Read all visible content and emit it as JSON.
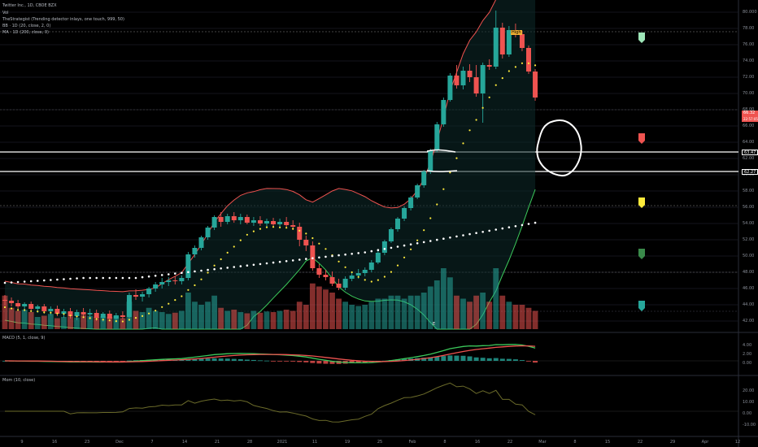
{
  "header": {
    "symbol_line": "Twitter Inc., 1D, CBOE BZX",
    "indicators": [
      "Vol",
      "TheStrategist (Trending detector inlays, one touch, 999, 50)",
      "BB · 1D (20, close, 2, 0)",
      "MA · 1D (200, close, 0)"
    ]
  },
  "colors": {
    "up": "#26a69a",
    "down": "#ef5350",
    "bb_upper": "#ef5350",
    "bb_lower": "#3cc95b",
    "sma_dots": "#ffeb3b",
    "ma_dots": "#ffffff",
    "macd_line": "#3cc95b",
    "signal_line": "#ef5350",
    "mom_line": "#6b6b2a"
  },
  "price_axis": {
    "ticks": [
      "80.000",
      "78.00",
      "76.00",
      "74.00",
      "72.00",
      "70.00",
      "68.00",
      "66.00",
      "64.00",
      "62.00",
      "60.00",
      "58.00",
      "56.00",
      "54.00",
      "52.00",
      "50.00",
      "48.00",
      "46.00",
      "44.00",
      "42.00"
    ],
    "current_label": "66.32",
    "current_sub": "22:57:05",
    "level_labels": [
      "63.47",
      "62.27"
    ]
  },
  "macd_panel": {
    "title": "MACD (5, 1, close, 9)",
    "ticks": [
      "4.00",
      "2.00",
      "0.00"
    ]
  },
  "mom_panel": {
    "title": "Mom (10, close)",
    "ticks": [
      "20.00",
      "10.00",
      "0.00",
      "-10.00"
    ]
  },
  "time_axis": [
    "9",
    "16",
    "23",
    "Dec",
    "7",
    "14",
    "21",
    "28",
    "2021",
    "11",
    "19",
    "25",
    "Feb",
    "8",
    "16",
    "22",
    "Mar",
    "8",
    "15",
    "22",
    "29",
    "Apr",
    "12"
  ],
  "annotations": {
    "high_label": "High",
    "marker_label": "E"
  },
  "chart_data": {
    "type": "candlestick",
    "candles": [
      [
        44.6,
        45.2,
        43.9,
        44.5
      ],
      [
        44.5,
        44.9,
        43.8,
        44.2
      ],
      [
        44.2,
        44.6,
        43.5,
        43.8
      ],
      [
        43.8,
        44.3,
        43.2,
        44.1
      ],
      [
        44.1,
        44.4,
        43.3,
        43.5
      ],
      [
        43.5,
        44.0,
        43.0,
        43.8
      ],
      [
        43.8,
        44.1,
        42.9,
        43.2
      ],
      [
        43.2,
        43.8,
        42.7,
        43.5
      ],
      [
        43.5,
        43.9,
        42.6,
        42.9
      ],
      [
        42.9,
        43.5,
        42.4,
        43.2
      ],
      [
        43.2,
        43.6,
        42.3,
        42.6
      ],
      [
        42.6,
        43.4,
        42.1,
        43.1
      ],
      [
        43.1,
        43.6,
        42.4,
        42.8
      ],
      [
        42.8,
        43.5,
        42.2,
        43.0
      ],
      [
        43.0,
        43.4,
        42.0,
        42.4
      ],
      [
        42.4,
        43.1,
        41.9,
        42.9
      ],
      [
        42.9,
        43.3,
        42.0,
        42.3
      ],
      [
        42.3,
        43.0,
        41.8,
        42.7
      ],
      [
        42.7,
        43.2,
        42.2,
        42.5
      ],
      [
        42.5,
        45.5,
        42.3,
        45.2
      ],
      [
        45.2,
        45.9,
        44.6,
        45.0
      ],
      [
        45.0,
        45.6,
        44.4,
        45.3
      ],
      [
        45.3,
        46.2,
        44.9,
        46.0
      ],
      [
        46.0,
        46.8,
        45.6,
        46.5
      ],
      [
        46.5,
        47.3,
        46.0,
        46.8
      ],
      [
        46.8,
        47.4,
        46.3,
        47.0
      ],
      [
        47.0,
        47.5,
        46.5,
        46.9
      ],
      [
        46.9,
        47.6,
        46.5,
        47.3
      ],
      [
        47.3,
        50.5,
        47.0,
        50.2
      ],
      [
        50.2,
        51.3,
        49.8,
        51.0
      ],
      [
        51.0,
        52.5,
        50.7,
        52.3
      ],
      [
        52.3,
        53.7,
        52.0,
        53.5
      ],
      [
        53.5,
        55.0,
        53.2,
        54.8
      ],
      [
        54.8,
        55.4,
        53.6,
        54.2
      ],
      [
        54.2,
        55.2,
        53.9,
        54.9
      ],
      [
        54.9,
        55.4,
        54.1,
        54.4
      ],
      [
        54.4,
        55.2,
        53.9,
        54.8
      ],
      [
        54.8,
        55.1,
        53.9,
        54.1
      ],
      [
        54.1,
        54.8,
        53.7,
        54.4
      ],
      [
        54.4,
        54.9,
        53.7,
        54.0
      ],
      [
        54.0,
        54.6,
        53.5,
        54.3
      ],
      [
        54.3,
        54.7,
        53.6,
        53.9
      ],
      [
        53.9,
        54.6,
        53.4,
        54.2
      ],
      [
        54.2,
        54.8,
        53.6,
        53.8
      ],
      [
        53.8,
        54.4,
        53.2,
        53.6
      ],
      [
        53.6,
        54.1,
        51.2,
        52.0
      ],
      [
        52.0,
        52.5,
        50.6,
        51.3
      ],
      [
        51.3,
        51.8,
        48.2,
        48.5
      ],
      [
        48.5,
        49.0,
        47.3,
        47.7
      ],
      [
        47.7,
        48.3,
        47.0,
        47.4
      ],
      [
        47.4,
        48.1,
        46.3,
        46.6
      ],
      [
        46.6,
        47.2,
        45.8,
        46.1
      ],
      [
        46.1,
        47.5,
        45.8,
        47.2
      ],
      [
        47.2,
        48.0,
        46.9,
        47.6
      ],
      [
        47.6,
        48.4,
        47.2,
        47.9
      ],
      [
        47.9,
        48.6,
        47.5,
        48.3
      ],
      [
        48.3,
        49.5,
        48.0,
        49.2
      ],
      [
        49.2,
        50.6,
        49.0,
        50.4
      ],
      [
        50.4,
        52.0,
        50.1,
        51.8
      ],
      [
        51.8,
        53.5,
        51.6,
        53.3
      ],
      [
        53.3,
        54.8,
        53.0,
        54.6
      ],
      [
        54.6,
        56.1,
        54.3,
        55.9
      ],
      [
        55.9,
        57.4,
        55.6,
        57.2
      ],
      [
        57.2,
        58.9,
        57.0,
        58.7
      ],
      [
        58.7,
        60.6,
        58.4,
        60.4
      ],
      [
        60.4,
        63.2,
        60.1,
        63.0
      ],
      [
        63.0,
        66.5,
        62.8,
        66.2
      ],
      [
        66.2,
        69.5,
        65.9,
        69.2
      ],
      [
        69.2,
        72.5,
        69.0,
        72.2
      ],
      [
        72.2,
        73.5,
        70.6,
        71.0
      ],
      [
        71.0,
        73.3,
        70.5,
        72.8
      ],
      [
        72.8,
        73.6,
        71.4,
        72.0
      ],
      [
        72.0,
        73.5,
        69.6,
        70.0
      ],
      [
        70.0,
        73.8,
        66.4,
        73.5
      ],
      [
        73.5,
        74.2,
        72.9,
        73.3
      ],
      [
        73.3,
        80.2,
        73.0,
        78.1
      ],
      [
        78.1,
        78.7,
        74.3,
        74.8
      ],
      [
        74.8,
        78.3,
        74.5,
        77.8
      ],
      [
        77.8,
        78.6,
        76.9,
        77.3
      ],
      [
        77.3,
        77.7,
        75.2,
        75.6
      ],
      [
        75.6,
        75.9,
        72.4,
        72.7
      ],
      [
        72.7,
        73.0,
        69.1,
        69.5
      ]
    ],
    "volume": [
      0.55,
      0.35,
      0.3,
      0.32,
      0.28,
      0.2,
      0.22,
      0.25,
      0.18,
      0.2,
      0.21,
      0.19,
      0.23,
      0.22,
      0.2,
      0.21,
      0.2,
      0.22,
      0.18,
      0.45,
      0.3,
      0.28,
      0.35,
      0.3,
      0.28,
      0.25,
      0.27,
      0.3,
      0.6,
      0.45,
      0.4,
      0.45,
      0.55,
      0.35,
      0.3,
      0.32,
      0.28,
      0.26,
      0.3,
      0.27,
      0.29,
      0.28,
      0.3,
      0.32,
      0.3,
      0.45,
      0.4,
      0.75,
      0.7,
      0.65,
      0.6,
      0.5,
      0.45,
      0.4,
      0.38,
      0.4,
      0.45,
      0.5,
      0.5,
      0.55,
      0.55,
      0.5,
      0.55,
      0.55,
      0.6,
      0.7,
      0.8,
      1.0,
      0.85,
      0.55,
      0.5,
      0.45,
      0.55,
      0.6,
      0.45,
      1.0,
      0.55,
      0.45,
      0.4,
      0.4,
      0.35,
      0.3
    ],
    "ylim": [
      41,
      81
    ]
  }
}
